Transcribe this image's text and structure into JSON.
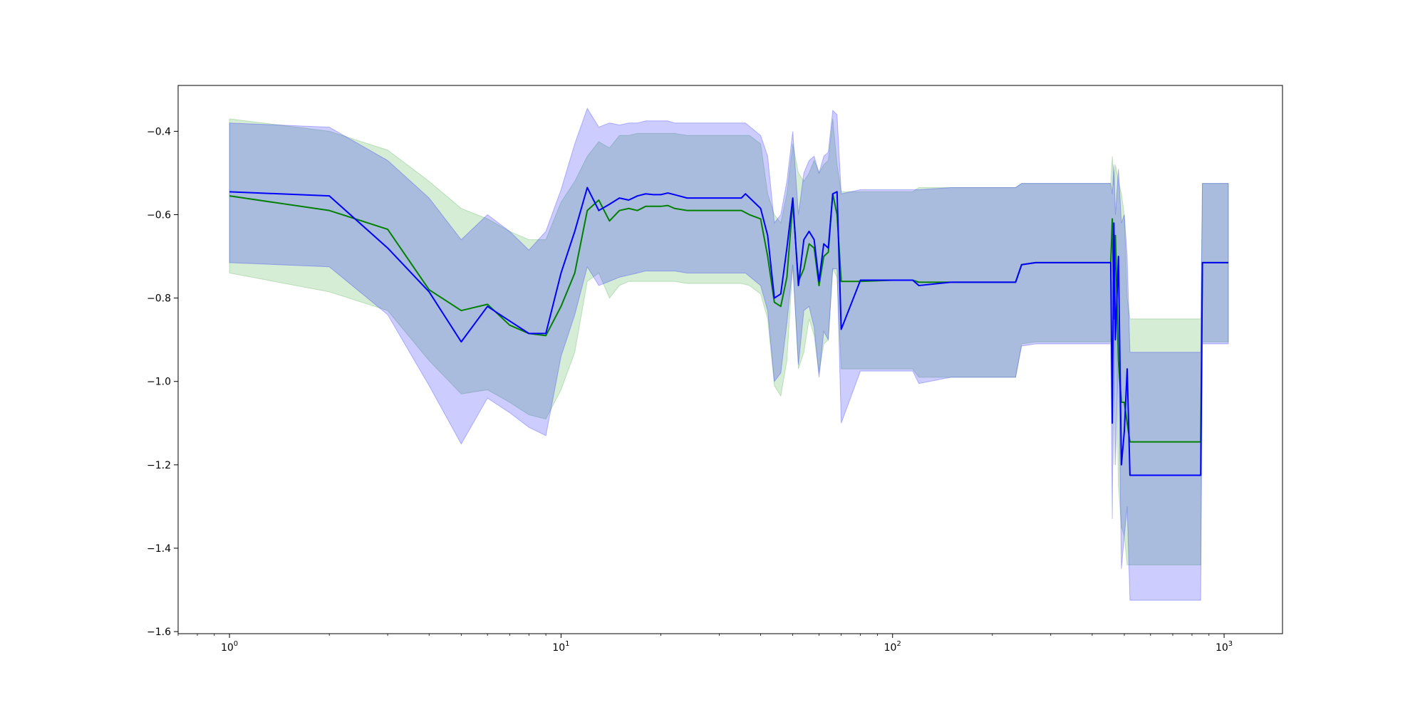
{
  "chart_data": {
    "type": "line",
    "title": "",
    "xlabel": "",
    "ylabel": "",
    "xscale": "log",
    "xlim": [
      0.7,
      1500
    ],
    "ylim": [
      -1.605,
      -0.29
    ],
    "grid": false,
    "legend": "none",
    "y_ticks": [
      {
        "value": -0.4,
        "label": "−0.4"
      },
      {
        "value": -0.6,
        "label": "−0.6"
      },
      {
        "value": -0.8,
        "label": "−0.8"
      },
      {
        "value": -1.0,
        "label": "−1.0"
      },
      {
        "value": -1.2,
        "label": "−1.2"
      },
      {
        "value": -1.4,
        "label": "−1.4"
      },
      {
        "value": -1.6,
        "label": "−1.6"
      }
    ],
    "x_ticks": [
      {
        "value": 1,
        "base": "10",
        "exp": "0"
      },
      {
        "value": 10,
        "base": "10",
        "exp": "1"
      },
      {
        "value": 100,
        "base": "10",
        "exp": "2"
      },
      {
        "value": 1000,
        "base": "10",
        "exp": "3"
      }
    ],
    "series": [
      {
        "color": "#008000",
        "band_color": "#2ca02c",
        "x": [
          1,
          2,
          3,
          4,
          5,
          6,
          7,
          8,
          9,
          10,
          11,
          12,
          13,
          14,
          15,
          16,
          17,
          18,
          19,
          20,
          21,
          22,
          24,
          30,
          35,
          37,
          40,
          42,
          44,
          46,
          48,
          50,
          52,
          54,
          56,
          58,
          60,
          62,
          64,
          66,
          68,
          70,
          80,
          100,
          115,
          120,
          150,
          200,
          235,
          245,
          270,
          300,
          400,
          455,
          460,
          465,
          470,
          480,
          490,
          500,
          510,
          520,
          530,
          700,
          850,
          860,
          1030
        ],
        "y": [
          -0.555,
          -0.59,
          -0.635,
          -0.78,
          -0.83,
          -0.815,
          -0.865,
          -0.885,
          -0.89,
          -0.82,
          -0.74,
          -0.59,
          -0.565,
          -0.615,
          -0.59,
          -0.585,
          -0.59,
          -0.58,
          -0.58,
          -0.58,
          -0.578,
          -0.585,
          -0.59,
          -0.59,
          -0.59,
          -0.6,
          -0.61,
          -0.7,
          -0.81,
          -0.82,
          -0.75,
          -0.57,
          -0.76,
          -0.73,
          -0.67,
          -0.68,
          -0.77,
          -0.7,
          -0.69,
          -0.55,
          -0.6,
          -0.76,
          -0.76,
          -0.757,
          -0.757,
          -0.762,
          -0.762,
          -0.762,
          -0.762,
          -0.72,
          -0.715,
          -0.715,
          -0.715,
          -0.715,
          -0.61,
          -0.85,
          -0.65,
          -0.95,
          -1.05,
          -1.05,
          -1.1,
          -1.145,
          -1.145,
          -1.145,
          -1.145,
          -0.715,
          -0.715
        ],
        "upper": [
          -0.37,
          -0.4,
          -0.445,
          -0.52,
          -0.585,
          -0.61,
          -0.64,
          -0.66,
          -0.66,
          -0.57,
          -0.52,
          -0.46,
          -0.425,
          -0.44,
          -0.41,
          -0.41,
          -0.405,
          -0.405,
          -0.405,
          -0.405,
          -0.405,
          -0.405,
          -0.41,
          -0.41,
          -0.41,
          -0.41,
          -0.43,
          -0.55,
          -0.6,
          -0.62,
          -0.55,
          -0.43,
          -0.5,
          -0.52,
          -0.5,
          -0.47,
          -0.5,
          -0.48,
          -0.47,
          -0.37,
          -0.48,
          -0.545,
          -0.545,
          -0.545,
          -0.545,
          -0.535,
          -0.535,
          -0.535,
          -0.535,
          -0.525,
          -0.525,
          -0.525,
          -0.525,
          -0.525,
          -0.46,
          -0.53,
          -0.48,
          -0.52,
          -0.55,
          -0.6,
          -0.8,
          -0.85,
          -0.85,
          -0.85,
          -0.85,
          -0.525,
          -0.525
        ],
        "lower": [
          -0.74,
          -0.785,
          -0.83,
          -0.95,
          -1.03,
          -1.02,
          -1.05,
          -1.08,
          -1.09,
          -1.02,
          -0.93,
          -0.76,
          -0.74,
          -0.8,
          -0.77,
          -0.76,
          -0.76,
          -0.76,
          -0.76,
          -0.76,
          -0.76,
          -0.76,
          -0.765,
          -0.765,
          -0.765,
          -0.77,
          -0.79,
          -0.85,
          -1.01,
          -1.035,
          -0.95,
          -0.72,
          -0.97,
          -0.93,
          -0.85,
          -0.89,
          -0.98,
          -0.91,
          -0.9,
          -0.73,
          -0.75,
          -0.97,
          -0.97,
          -0.97,
          -0.97,
          -0.99,
          -0.99,
          -0.99,
          -0.99,
          -0.91,
          -0.905,
          -0.905,
          -0.905,
          -0.905,
          -0.76,
          -1.2,
          -0.85,
          -1.25,
          -1.35,
          -1.37,
          -1.44,
          -1.44,
          -1.44,
          -1.44,
          -1.44,
          -0.905,
          -0.905
        ]
      },
      {
        "color": "#0000ff",
        "band_color": "#0000ff",
        "x": [
          1,
          2,
          3,
          4,
          5,
          6,
          7,
          8,
          9,
          10,
          11,
          12,
          13,
          14,
          15,
          16,
          17,
          18,
          19,
          20,
          21,
          22,
          24,
          30,
          35,
          36,
          40,
          42,
          44,
          46,
          48,
          50,
          52,
          54,
          56,
          58,
          60,
          62,
          64,
          66,
          68,
          70,
          80,
          100,
          115,
          120,
          150,
          200,
          235,
          245,
          270,
          300,
          400,
          455,
          460,
          465,
          470,
          480,
          490,
          500,
          510,
          520,
          530,
          700,
          850,
          860,
          1030
        ],
        "y": [
          -0.545,
          -0.555,
          -0.68,
          -0.785,
          -0.905,
          -0.82,
          -0.855,
          -0.885,
          -0.885,
          -0.74,
          -0.64,
          -0.535,
          -0.59,
          -0.575,
          -0.56,
          -0.565,
          -0.555,
          -0.55,
          -0.552,
          -0.552,
          -0.548,
          -0.552,
          -0.56,
          -0.56,
          -0.56,
          -0.55,
          -0.585,
          -0.65,
          -0.8,
          -0.79,
          -0.68,
          -0.56,
          -0.77,
          -0.66,
          -0.64,
          -0.66,
          -0.76,
          -0.67,
          -0.68,
          -0.55,
          -0.545,
          -0.875,
          -0.757,
          -0.757,
          -0.757,
          -0.77,
          -0.762,
          -0.762,
          -0.762,
          -0.72,
          -0.715,
          -0.715,
          -0.715,
          -0.715,
          -1.1,
          -0.62,
          -0.9,
          -0.7,
          -1.2,
          -1.12,
          -0.97,
          -1.225,
          -1.225,
          -1.225,
          -1.225,
          -0.715,
          -0.715
        ],
        "upper": [
          -0.38,
          -0.39,
          -0.47,
          -0.56,
          -0.66,
          -0.6,
          -0.64,
          -0.685,
          -0.64,
          -0.54,
          -0.43,
          -0.345,
          -0.39,
          -0.38,
          -0.385,
          -0.38,
          -0.38,
          -0.375,
          -0.375,
          -0.375,
          -0.375,
          -0.38,
          -0.38,
          -0.38,
          -0.38,
          -0.38,
          -0.41,
          -0.46,
          -0.62,
          -0.6,
          -0.52,
          -0.4,
          -0.6,
          -0.5,
          -0.47,
          -0.46,
          -0.5,
          -0.46,
          -0.45,
          -0.35,
          -0.36,
          -0.55,
          -0.54,
          -0.54,
          -0.54,
          -0.54,
          -0.535,
          -0.535,
          -0.535,
          -0.525,
          -0.525,
          -0.525,
          -0.525,
          -0.525,
          -0.55,
          -0.48,
          -0.6,
          -0.49,
          -0.62,
          -0.6,
          -0.7,
          -0.93,
          -0.93,
          -0.93,
          -0.93,
          -0.525,
          -0.525
        ],
        "lower": [
          -0.715,
          -0.725,
          -0.84,
          -1.01,
          -1.15,
          -1.04,
          -1.075,
          -1.11,
          -1.13,
          -0.94,
          -0.84,
          -0.725,
          -0.77,
          -0.76,
          -0.75,
          -0.745,
          -0.74,
          -0.735,
          -0.735,
          -0.735,
          -0.735,
          -0.735,
          -0.74,
          -0.74,
          -0.74,
          -0.74,
          -0.77,
          -0.83,
          -1.0,
          -0.98,
          -0.86,
          -0.72,
          -0.96,
          -0.83,
          -0.82,
          -0.87,
          -0.99,
          -0.88,
          -0.9,
          -0.73,
          -0.73,
          -1.1,
          -0.975,
          -0.975,
          -0.975,
          -1.005,
          -0.99,
          -0.99,
          -0.99,
          -0.915,
          -0.91,
          -0.91,
          -0.91,
          -0.91,
          -1.33,
          -0.8,
          -1.2,
          -0.94,
          -1.45,
          -1.37,
          -1.3,
          -1.525,
          -1.525,
          -1.525,
          -1.525,
          -0.91,
          -0.91
        ]
      }
    ]
  }
}
